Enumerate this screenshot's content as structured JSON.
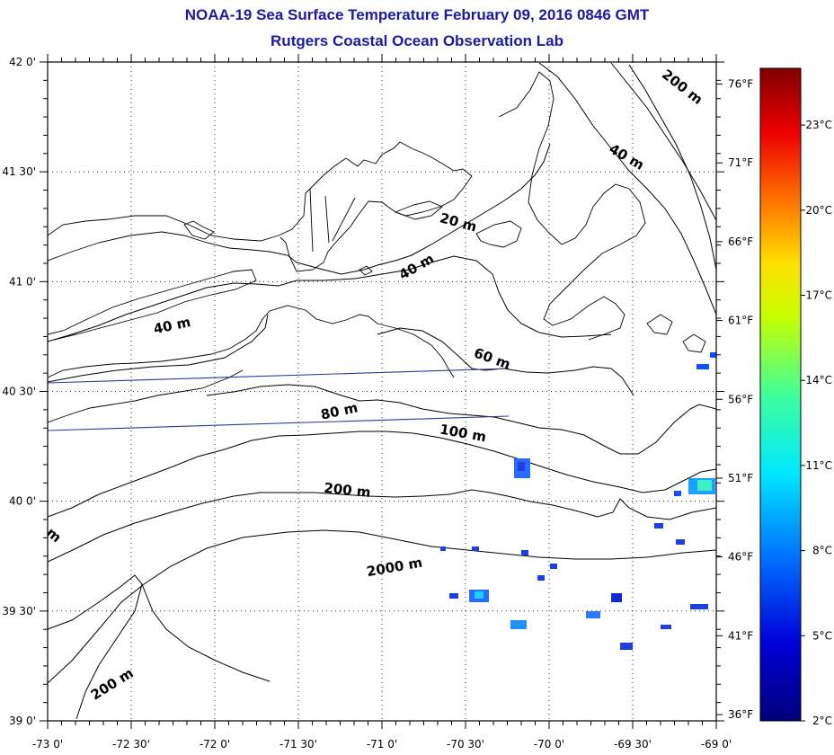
{
  "title_line1": "NOAA-19 Sea Surface Temperature February 09, 2016 0846 GMT",
  "title_line2": "Rutgers Coastal Ocean Observation Lab",
  "map": {
    "lon_range": [
      -73.0,
      -69.0
    ],
    "lat_range": [
      39.0,
      42.0
    ],
    "lon_ticks": [
      {
        "value": -73.0,
        "label": "-73 0'"
      },
      {
        "value": -72.5,
        "label": "-72 30'"
      },
      {
        "value": -72.0,
        "label": "-72 0'"
      },
      {
        "value": -71.5,
        "label": "-71 30'"
      },
      {
        "value": -71.0,
        "label": "-71 0'"
      },
      {
        "value": -70.5,
        "label": "-70 30'"
      },
      {
        "value": -70.0,
        "label": "-70 0'"
      },
      {
        "value": -69.5,
        "label": "-69 30'"
      },
      {
        "value": -69.0,
        "label": "-69 0'"
      }
    ],
    "lat_ticks": [
      {
        "value": 42.0,
        "label": "42 0'"
      },
      {
        "value": 41.5,
        "label": "41 30'"
      },
      {
        "value": 41.0,
        "label": "41 0'"
      },
      {
        "value": 40.5,
        "label": "40 30'"
      },
      {
        "value": 40.0,
        "label": "40 0'"
      },
      {
        "value": 39.5,
        "label": "39 30'"
      },
      {
        "value": 39.0,
        "label": "39 0'"
      }
    ],
    "grid": "dotted",
    "contour_labels": [
      {
        "text": "200 m",
        "lon": -69.22,
        "lat": 41.87,
        "angle": 38
      },
      {
        "text": "40 m",
        "lon": -69.55,
        "lat": 41.55,
        "angle": 30
      },
      {
        "text": "20 m",
        "lon": -70.55,
        "lat": 41.25,
        "angle": 15
      },
      {
        "text": "40 m",
        "lon": -70.78,
        "lat": 41.05,
        "angle": -30
      },
      {
        "text": "40 m",
        "lon": -72.25,
        "lat": 40.78,
        "angle": -12
      },
      {
        "text": "60 m",
        "lon": -70.35,
        "lat": 40.63,
        "angle": 20
      },
      {
        "text": "80 m",
        "lon": -71.25,
        "lat": 40.39,
        "angle": -12
      },
      {
        "text": "100 m",
        "lon": -70.52,
        "lat": 40.29,
        "angle": 10
      },
      {
        "text": "200 m",
        "lon": -71.21,
        "lat": 40.03,
        "angle": 6
      },
      {
        "text": "2000 m",
        "lon": -70.92,
        "lat": 39.68,
        "angle": -10
      },
      {
        "text": "200 m",
        "lon": -72.6,
        "lat": 39.15,
        "angle": -32
      },
      {
        "text": "m",
        "lon": -72.98,
        "lat": 39.83,
        "angle": 40
      }
    ],
    "sst_pixels_color_note": "blue",
    "colors": {
      "title": "#1a1aa6",
      "track": "#2b3a9a"
    }
  },
  "colorbar": {
    "celsius": [
      {
        "value": 23,
        "label": "23°C"
      },
      {
        "value": 20,
        "label": "20°C"
      },
      {
        "value": 17,
        "label": "17°C"
      },
      {
        "value": 14,
        "label": "14°C"
      },
      {
        "value": 11,
        "label": "11°C"
      },
      {
        "value": 8,
        "label": "8°C"
      },
      {
        "value": 5,
        "label": "5°C"
      },
      {
        "value": 2,
        "label": "2°C"
      }
    ],
    "fahrenheit": [
      {
        "value": 76,
        "label": "76°F"
      },
      {
        "value": 71,
        "label": "71°F"
      },
      {
        "value": 66,
        "label": "66°F"
      },
      {
        "value": 61,
        "label": "61°F"
      },
      {
        "value": 56,
        "label": "56°F"
      },
      {
        "value": 51,
        "label": "51°F"
      },
      {
        "value": 46,
        "label": "46°F"
      },
      {
        "value": 41,
        "label": "41°F"
      },
      {
        "value": 36,
        "label": "36°F"
      }
    ],
    "range_c": [
      2,
      25
    ]
  }
}
